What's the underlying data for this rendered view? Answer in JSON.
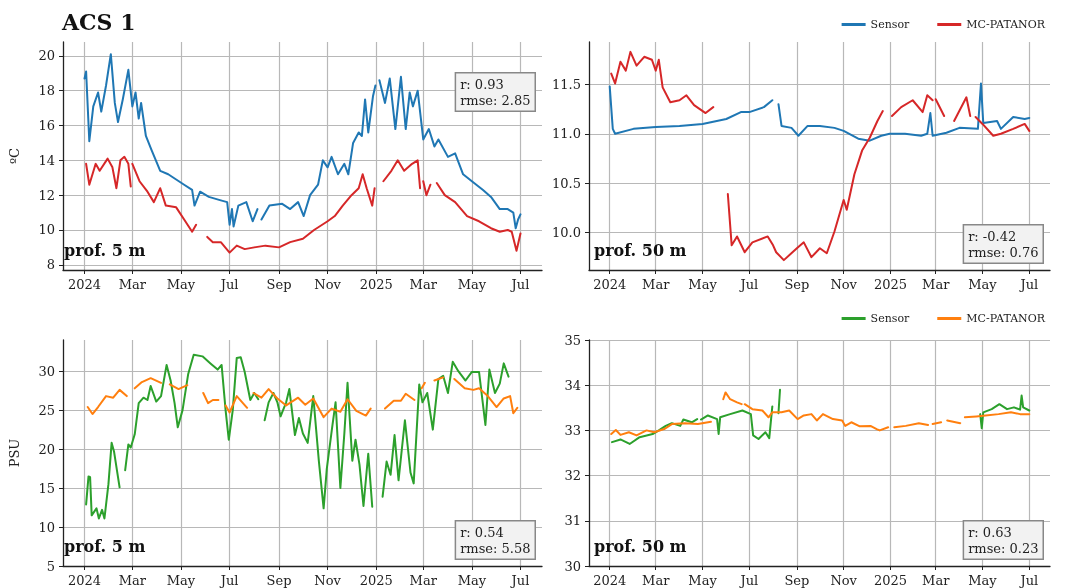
{
  "chart_data": [
    {
      "type": "line",
      "title": "ACS 1",
      "ylabel": "ºC",
      "xlim": [
        "2023-12-05",
        "2025-07-28"
      ],
      "ylim": [
        7.7,
        20.8
      ],
      "xticks": [
        {
          "value": "2024-01-01",
          "label": "2024"
        },
        {
          "value": "2024-03-01",
          "label": "Mar"
        },
        {
          "value": "2024-05-01",
          "label": "May"
        },
        {
          "value": "2024-07-01",
          "label": "Jul"
        },
        {
          "value": "2024-09-01",
          "label": "Sep"
        },
        {
          "value": "2024-11-01",
          "label": "Nov"
        },
        {
          "value": "2025-01-01",
          "label": "2025"
        },
        {
          "value": "2025-03-01",
          "label": "Mar"
        },
        {
          "value": "2025-05-01",
          "label": "May"
        },
        {
          "value": "2025-07-01",
          "label": "Jul"
        }
      ],
      "yticks": [
        8,
        10,
        12,
        14,
        16,
        18,
        20
      ],
      "grid": true,
      "marker": "none",
      "legend": false,
      "annotations": [
        "prof. 5 m",
        "r: 0.93\nrmse: 2.85"
      ],
      "series": [
        {
          "color": "#1f77b4",
          "x": [
            "2024-01-01",
            "2024-01-03",
            "2024-01-07",
            "2024-01-12",
            "2024-01-18",
            "2024-01-22",
            "2024-01-28",
            "2024-02-03",
            "2024-02-08",
            "2024-02-12",
            "2024-02-18",
            "2024-02-25",
            "2024-03-01",
            "2024-03-05",
            "2024-03-09",
            "2024-03-12",
            "2024-03-18",
            "2024-03-25",
            "2024-04-05",
            "2024-04-15",
            "2024-04-25",
            "2024-05-05",
            "2024-05-15",
            "2024-05-18",
            "2024-05-25",
            "2024-06-05",
            "2024-06-20",
            "2024-06-28",
            "2024-07-01",
            "2024-07-04",
            "2024-07-06",
            "2024-07-12",
            "2024-07-22",
            "2024-07-30",
            "2024-08-05",
            "2024-08-08",
            "2024-08-10",
            "2024-08-20",
            "2024-09-05",
            "2024-09-15",
            "2024-09-25",
            "2024-10-02",
            "2024-10-10",
            "2024-10-20",
            "2024-10-26",
            "2024-11-01",
            "2024-11-06",
            "2024-11-14",
            "2024-11-22",
            "2024-11-27",
            "2024-12-03",
            "2024-12-10",
            "2024-12-14",
            "2024-12-18",
            "2024-12-22",
            "2024-12-28",
            "2024-12-31",
            "2025-01-02",
            "2025-01-05",
            "2025-01-12",
            "2025-01-18",
            "2025-01-25",
            "2025-02-01",
            "2025-02-07",
            "2025-02-12",
            "2025-02-16",
            "2025-02-22",
            "2025-03-01",
            "2025-03-08",
            "2025-03-15",
            "2025-03-20",
            "2025-04-01",
            "2025-04-10",
            "2025-04-20",
            "2025-05-01",
            "2025-05-15",
            "2025-05-25",
            "2025-06-05",
            "2025-06-15",
            "2025-06-22",
            "2025-06-25",
            "2025-06-28",
            "2025-07-01"
          ],
          "values": [
            18.7,
            19.1,
            15.1,
            17.1,
            17.9,
            16.8,
            18.3,
            20.1,
            17.3,
            16.2,
            17.5,
            19.2,
            17.1,
            17.9,
            16.4,
            17.3,
            15.4,
            14.6,
            13.4,
            13.2,
            12.9,
            12.6,
            12.3,
            11.4,
            12.2,
            11.9,
            11.7,
            11.6,
            10.3,
            11.2,
            10.2,
            11.4,
            11.6,
            10.5,
            11.2,
            null,
            10.6,
            11.4,
            11.5,
            11.2,
            11.6,
            10.8,
            12.0,
            12.6,
            14.0,
            13.6,
            14.2,
            13.2,
            13.8,
            13.2,
            15.0,
            15.6,
            15.4,
            17.5,
            15.6,
            17.7,
            18.3,
            null,
            18.6,
            17.3,
            18.7,
            15.8,
            18.8,
            15.8,
            17.9,
            17.1,
            18.0,
            15.2,
            15.8,
            14.8,
            15.2,
            14.2,
            14.4,
            13.2,
            12.8,
            12.3,
            11.9,
            11.2,
            11.2,
            11.0,
            10.1,
            10.6,
            10.9
          ]
        },
        {
          "color": "#d62728",
          "x": [
            "2024-01-03",
            "2024-01-07",
            "2024-01-15",
            "2024-01-20",
            "2024-01-30",
            "2024-02-05",
            "2024-02-10",
            "2024-02-15",
            "2024-02-20",
            "2024-02-25",
            "2024-02-28",
            "2024-02-29",
            "2024-03-01",
            "2024-03-10",
            "2024-03-20",
            "2024-03-28",
            "2024-04-05",
            "2024-04-12",
            "2024-04-25",
            "2024-05-05",
            "2024-05-15",
            "2024-05-20",
            "2024-05-27",
            "2024-06-03",
            "2024-06-10",
            "2024-06-20",
            "2024-07-01",
            "2024-07-10",
            "2024-07-20",
            "2024-08-01",
            "2024-08-15",
            "2024-09-01",
            "2024-09-15",
            "2024-10-01",
            "2024-10-15",
            "2024-11-01",
            "2024-11-10",
            "2024-11-20",
            "2024-12-01",
            "2024-12-10",
            "2024-12-15",
            "2024-12-20",
            "2024-12-27",
            "2024-12-30",
            "2025-01-05",
            "2025-01-10",
            "2025-01-20",
            "2025-01-28",
            "2025-02-05",
            "2025-02-15",
            "2025-02-22",
            "2025-02-25",
            "2025-02-27",
            "2025-03-01",
            "2025-03-05",
            "2025-03-10",
            "2025-03-14",
            "2025-03-18",
            "2025-03-28",
            "2025-04-10",
            "2025-04-25",
            "2025-05-10",
            "2025-05-25",
            "2025-06-05",
            "2025-06-15",
            "2025-06-20",
            "2025-06-26",
            "2025-07-01"
          ],
          "values": [
            13.8,
            12.6,
            13.8,
            13.4,
            14.1,
            13.6,
            12.4,
            14.0,
            14.2,
            13.8,
            12.5,
            null,
            13.8,
            12.8,
            12.2,
            11.6,
            12.4,
            11.4,
            11.3,
            10.6,
            9.9,
            10.3,
            null,
            9.6,
            9.3,
            9.3,
            8.7,
            9.1,
            8.9,
            9.0,
            9.1,
            9.0,
            9.3,
            9.5,
            10.0,
            10.5,
            10.8,
            11.4,
            12.0,
            12.4,
            13.2,
            12.4,
            11.4,
            12.4,
            null,
            12.8,
            13.4,
            14.0,
            13.4,
            13.8,
            14.0,
            12.4,
            null,
            12.8,
            12.0,
            12.6,
            null,
            12.7,
            12.0,
            11.6,
            10.8,
            10.5,
            10.1,
            9.9,
            10.0,
            9.9,
            8.8,
            9.8
          ]
        }
      ]
    },
    {
      "type": "line",
      "xlim": [
        "2023-12-05",
        "2025-07-28"
      ],
      "ylim": [
        9.62,
        11.93
      ],
      "xticks": [
        {
          "value": "2024-01-01",
          "label": "2024"
        },
        {
          "value": "2024-03-01",
          "label": "Mar"
        },
        {
          "value": "2024-05-01",
          "label": "May"
        },
        {
          "value": "2024-07-01",
          "label": "Jul"
        },
        {
          "value": "2024-09-01",
          "label": "Sep"
        },
        {
          "value": "2024-11-01",
          "label": "Nov"
        },
        {
          "value": "2025-01-01",
          "label": "2025"
        },
        {
          "value": "2025-03-01",
          "label": "Mar"
        },
        {
          "value": "2025-05-01",
          "label": "May"
        },
        {
          "value": "2025-07-01",
          "label": "Jul"
        }
      ],
      "yticks": [
        {
          "value": 10,
          "label": "10.0"
        },
        {
          "value": 10.5,
          "label": "10.5"
        },
        {
          "value": 11,
          "label": "11.0"
        },
        {
          "value": 11.5,
          "label": "11.5"
        }
      ],
      "grid": true,
      "marker": "none",
      "legend": "top right",
      "annotations": [
        "prof. 50 m",
        "r: -0.42\nrmse: 0.76"
      ],
      "series": [
        {
          "name": "Sensor",
          "color": "#1f77b4",
          "x": [
            "2024-01-01",
            "2024-01-05",
            "2024-01-08",
            "2024-02-01",
            "2024-03-01",
            "2024-04-01",
            "2024-05-01",
            "2024-06-01",
            "2024-06-20",
            "2024-07-01",
            "2024-07-20",
            "2024-07-31",
            "2024-08-04",
            "2024-08-08",
            "2024-08-12",
            "2024-08-25",
            "2024-09-03",
            "2024-09-15",
            "2024-10-01",
            "2024-10-20",
            "2024-11-01",
            "2024-11-20",
            "2024-12-05",
            "2024-12-20",
            "2024-12-31",
            "2025-01-20",
            "2025-02-10",
            "2025-02-18",
            "2025-02-22",
            "2025-02-25",
            "2025-03-15",
            "2025-04-01",
            "2025-04-25",
            "2025-04-29",
            "2025-05-02",
            "2025-05-20",
            "2025-05-25",
            "2025-06-10",
            "2025-06-25",
            "2025-07-01"
          ],
          "values": [
            11.48,
            11.05,
            11.0,
            11.05,
            11.07,
            11.08,
            11.1,
            11.15,
            11.22,
            11.22,
            11.27,
            11.34,
            null,
            11.3,
            11.08,
            11.06,
            10.98,
            11.08,
            11.08,
            11.06,
            11.03,
            10.95,
            10.93,
            10.98,
            11.0,
            11.0,
            10.98,
            11.0,
            11.21,
            10.98,
            11.01,
            11.06,
            11.05,
            11.51,
            11.11,
            11.13,
            11.05,
            11.17,
            11.15,
            11.16
          ]
        },
        {
          "name": "MC-PATANOR",
          "color": "#d62728",
          "x": [
            "2024-01-03",
            "2024-01-08",
            "2024-01-15",
            "2024-01-22",
            "2024-01-28",
            "2024-02-05",
            "2024-02-15",
            "2024-02-25",
            "2024-03-01",
            "2024-03-05",
            "2024-03-10",
            "2024-03-20",
            "2024-04-01",
            "2024-04-10",
            "2024-04-20",
            "2024-05-05",
            "2024-05-15",
            "2024-05-25",
            "2024-06-03",
            "2024-06-08",
            "2024-06-15",
            "2024-06-25",
            "2024-07-05",
            "2024-07-25",
            "2024-08-01",
            "2024-08-05",
            "2024-08-15",
            "2024-09-01",
            "2024-09-10",
            "2024-09-20",
            "2024-10-01",
            "2024-10-10",
            "2024-10-20",
            "2024-11-01",
            "2024-11-05",
            "2024-11-15",
            "2024-11-25",
            "2024-12-05",
            "2024-12-15",
            "2024-12-22",
            "2024-12-28",
            "2025-01-03",
            "2025-01-15",
            "2025-01-30",
            "2025-02-12",
            "2025-02-18",
            "2025-02-25",
            "2025-02-27",
            "2025-03-01",
            "2025-03-12",
            "2025-03-18",
            "2025-03-25",
            "2025-04-10",
            "2025-04-15",
            "2025-04-18",
            "2025-04-22",
            "2025-05-01",
            "2025-05-15",
            "2025-05-25",
            "2025-06-10",
            "2025-06-25",
            "2025-07-01"
          ],
          "values": [
            11.61,
            11.51,
            11.73,
            11.64,
            11.83,
            11.69,
            11.78,
            11.75,
            11.64,
            11.75,
            11.47,
            11.32,
            11.34,
            11.39,
            11.29,
            11.21,
            11.27,
            null,
            10.39,
            9.87,
            9.96,
            9.8,
            9.9,
            9.96,
            9.87,
            9.8,
            9.72,
            9.84,
            9.9,
            9.75,
            9.84,
            9.79,
            10.01,
            10.33,
            10.23,
            10.59,
            10.83,
            10.96,
            11.13,
            11.23,
            null,
            11.18,
            11.27,
            11.34,
            11.22,
            11.39,
            11.34,
            null,
            11.35,
            11.18,
            null,
            11.13,
            11.37,
            11.18,
            null,
            11.17,
            11.1,
            10.98,
            11.0,
            11.05,
            11.1,
            11.03
          ]
        }
      ]
    },
    {
      "type": "line",
      "ylabel": "PSU",
      "xlim": [
        "2023-12-05",
        "2025-07-28"
      ],
      "ylim": [
        5,
        34
      ],
      "xticks": [
        {
          "value": "2024-01-01",
          "label": "2024"
        },
        {
          "value": "2024-03-01",
          "label": "Mar"
        },
        {
          "value": "2024-05-01",
          "label": "May"
        },
        {
          "value": "2024-07-01",
          "label": "Jul"
        },
        {
          "value": "2024-09-01",
          "label": "Sep"
        },
        {
          "value": "2024-11-01",
          "label": "Nov"
        },
        {
          "value": "2025-01-01",
          "label": "2025"
        },
        {
          "value": "2025-03-01",
          "label": "Mar"
        },
        {
          "value": "2025-05-01",
          "label": "May"
        },
        {
          "value": "2025-07-01",
          "label": "Jul"
        }
      ],
      "yticks": [
        5,
        10,
        15,
        20,
        25,
        30
      ],
      "grid": true,
      "marker": "none",
      "legend": false,
      "annotations": [
        "prof. 5 m",
        "r: 0.54\nrmse: 5.58"
      ],
      "series": [
        {
          "color": "#2ca02c",
          "x": [
            "2024-01-03",
            "2024-01-06",
            "2024-01-08",
            "2024-01-10",
            "2024-01-16",
            "2024-01-19",
            "2024-01-23",
            "2024-01-26",
            "2024-01-31",
            "2024-02-04",
            "2024-02-07",
            "2024-02-14",
            "2024-02-18",
            "2024-02-21",
            "2024-02-25",
            "2024-02-28",
            "2024-03-04",
            "2024-03-09",
            "2024-03-15",
            "2024-03-20",
            "2024-03-24",
            "2024-03-31",
            "2024-04-06",
            "2024-04-13",
            "2024-04-18",
            "2024-04-23",
            "2024-04-27",
            "2024-05-03",
            "2024-05-10",
            "2024-05-17",
            "2024-05-28",
            "2024-06-07",
            "2024-06-16",
            "2024-06-21",
            "2024-06-26",
            "2024-06-30",
            "2024-07-05",
            "2024-07-10",
            "2024-07-15",
            "2024-07-20",
            "2024-07-27",
            "2024-08-01",
            "2024-08-06",
            "2024-08-10",
            "2024-08-14",
            "2024-08-19",
            "2024-08-25",
            "2024-08-30",
            "2024-09-03",
            "2024-09-10",
            "2024-09-14",
            "2024-09-21",
            "2024-09-26",
            "2024-10-01",
            "2024-10-07",
            "2024-10-14",
            "2024-10-21",
            "2024-10-27",
            "2024-10-31",
            "2024-11-07",
            "2024-11-11",
            "2024-11-17",
            "2024-11-22",
            "2024-11-26",
            "2024-12-02",
            "2024-12-06",
            "2024-12-11",
            "2024-12-16",
            "2024-12-22",
            "2024-12-27",
            "2025-01-03",
            "2025-01-09",
            "2025-01-14",
            "2025-01-19",
            "2025-01-24",
            "2025-01-29",
            "2025-02-06",
            "2025-02-13",
            "2025-02-17",
            "2025-02-24",
            "2025-02-28",
            "2025-03-06",
            "2025-03-13",
            "2025-03-20",
            "2025-03-26",
            "2025-04-01",
            "2025-04-07",
            "2025-04-14",
            "2025-04-23",
            "2025-05-01",
            "2025-05-10",
            "2025-05-18",
            "2025-05-23",
            "2025-05-30",
            "2025-06-05",
            "2025-06-10",
            "2025-06-16"
          ],
          "values": [
            12.9,
            16.5,
            16.4,
            11.5,
            12.4,
            11.1,
            12.2,
            11.1,
            15.5,
            20.8,
            19.7,
            15.1,
            null,
            17.3,
            20.6,
            20.2,
            21.9,
            25.9,
            26.6,
            26.3,
            28.1,
            26.1,
            26.8,
            30.8,
            28.8,
            25.9,
            22.8,
            25.0,
            29.6,
            32.1,
            31.9,
            31.0,
            30.2,
            30.8,
            25.0,
            21.2,
            25.0,
            31.7,
            31.8,
            29.9,
            26.3,
            27.2,
            26.4,
            null,
            23.7,
            26.0,
            27.2,
            26.0,
            24.2,
            26.0,
            27.7,
            21.8,
            24.0,
            22.0,
            20.8,
            26.8,
            18.5,
            12.4,
            17.5,
            23.0,
            26.0,
            15.0,
            22.0,
            28.5,
            18.5,
            21.2,
            18.0,
            12.7,
            19.4,
            12.6,
            null,
            13.9,
            18.4,
            16.7,
            21.8,
            16.0,
            23.7,
            17.0,
            15.6,
            28.3,
            26.0,
            27.2,
            22.5,
            29.0,
            29.4,
            27.2,
            31.2,
            30.0,
            28.8,
            29.9,
            29.9,
            23.1,
            30.2,
            27.2,
            28.4,
            31.0,
            29.3
          ]
        },
        {
          "color": "#ff7f0e",
          "x": [
            "2024-01-05",
            "2024-01-11",
            "2024-01-18",
            "2024-01-28",
            "2024-02-06",
            "2024-02-14",
            "2024-02-23",
            "2024-02-28",
            "2024-03-04",
            "2024-03-13",
            "2024-03-24",
            "2024-04-06",
            "2024-04-12",
            "2024-04-17",
            "2024-04-28",
            "2024-05-09",
            "2024-05-18",
            "2024-05-29",
            "2024-06-04",
            "2024-06-10",
            "2024-06-17",
            "2024-06-22",
            "2024-06-26",
            "2024-07-01",
            "2024-07-10",
            "2024-07-23",
            "2024-07-27",
            "2024-07-31",
            "2024-08-10",
            "2024-08-19",
            "2024-08-30",
            "2024-09-10",
            "2024-09-25",
            "2024-10-04",
            "2024-10-14",
            "2024-10-27",
            "2024-11-06",
            "2024-11-17",
            "2024-11-26",
            "2024-12-07",
            "2024-12-19",
            "2024-12-25",
            "2025-01-03",
            "2025-01-12",
            "2025-01-23",
            "2025-02-01",
            "2025-02-07",
            "2025-02-18",
            "2025-02-22",
            "2025-02-27",
            "2025-03-03",
            "2025-03-09",
            "2025-03-15",
            "2025-03-26",
            "2025-04-02",
            "2025-04-09",
            "2025-04-22",
            "2025-05-03",
            "2025-05-10",
            "2025-05-21",
            "2025-06-01",
            "2025-06-10",
            "2025-06-18",
            "2025-06-22",
            "2025-06-27"
          ],
          "values": [
            25.4,
            24.5,
            25.4,
            26.8,
            26.6,
            27.6,
            26.8,
            null,
            27.8,
            28.6,
            29.1,
            28.5,
            null,
            28.3,
            27.7,
            28.2,
            null,
            27.2,
            25.9,
            26.3,
            26.3,
            null,
            25.6,
            24.7,
            26.8,
            25.3,
            null,
            27.2,
            26.6,
            27.7,
            26.5,
            25.6,
            26.6,
            25.7,
            26.5,
            24.1,
            25.2,
            24.8,
            26.4,
            24.9,
            24.3,
            25.2,
            null,
            25.2,
            26.2,
            26.2,
            27.1,
            26.3,
            null,
            27.8,
            28.5,
            null,
            28.8,
            29.2,
            null,
            29.0,
            27.8,
            27.6,
            27.8,
            26.8,
            25.4,
            26.5,
            26.8,
            24.6,
            25.3
          ]
        }
      ]
    },
    {
      "type": "line",
      "xlim": [
        "2023-12-05",
        "2025-07-28"
      ],
      "ylim": [
        30,
        35
      ],
      "xticks": [
        {
          "value": "2024-01-01",
          "label": "2024"
        },
        {
          "value": "2024-03-01",
          "label": "Mar"
        },
        {
          "value": "2024-05-01",
          "label": "May"
        },
        {
          "value": "2024-07-01",
          "label": "Jul"
        },
        {
          "value": "2024-09-01",
          "label": "Sep"
        },
        {
          "value": "2024-11-01",
          "label": "Nov"
        },
        {
          "value": "2025-01-01",
          "label": "2025"
        },
        {
          "value": "2025-03-01",
          "label": "Mar"
        },
        {
          "value": "2025-05-01",
          "label": "May"
        },
        {
          "value": "2025-07-01",
          "label": "Jul"
        }
      ],
      "yticks": [
        30,
        31,
        32,
        33,
        34,
        35
      ],
      "grid": true,
      "marker": "none",
      "legend": "top right",
      "annotations": [
        "prof. 50 m",
        "r: 0.63\nrmse: 0.23"
      ],
      "series": [
        {
          "name": "Sensor",
          "color": "#2ca02c",
          "x": [
            "2024-01-04",
            "2024-01-15",
            "2024-01-27",
            "2024-02-09",
            "2024-02-26",
            "2024-03-05",
            "2024-03-14",
            "2024-03-22",
            "2024-04-02",
            "2024-04-06",
            "2024-04-17",
            "2024-04-24",
            "2024-04-26",
            "2024-04-29",
            "2024-05-08",
            "2024-05-20",
            "2024-05-22",
            "2024-05-24",
            "2024-06-06",
            "2024-06-22",
            "2024-07-03",
            "2024-07-06",
            "2024-07-13",
            "2024-07-22",
            "2024-07-27",
            "2024-07-31",
            "2024-08-04",
            "2024-08-08",
            "2024-08-10",
            "2024-09-01",
            "2025-04-28",
            "2025-04-30",
            "2025-05-02",
            "2025-05-13",
            "2025-05-23",
            "2025-06-02",
            "2025-06-11",
            "2025-06-19",
            "2025-06-21",
            "2025-06-23",
            "2025-07-01"
          ],
          "values": [
            32.74,
            32.8,
            32.7,
            32.85,
            32.92,
            33.0,
            33.1,
            33.16,
            33.1,
            33.24,
            33.18,
            33.25,
            null,
            33.24,
            33.33,
            33.25,
            32.92,
            33.29,
            33.36,
            33.44,
            33.36,
            32.89,
            32.81,
            32.96,
            32.83,
            33.53,
            null,
            33.38,
            33.9,
            null,
            33.36,
            33.05,
            33.4,
            33.47,
            33.58,
            33.47,
            33.51,
            33.46,
            33.77,
            33.51,
            33.44
          ]
        },
        {
          "name": "MC-PATANOR",
          "color": "#ff7f0e",
          "x": [
            "2024-01-03",
            "2024-01-09",
            "2024-01-15",
            "2024-01-26",
            "2024-02-05",
            "2024-02-18",
            "2024-02-28",
            "2024-03-12",
            "2024-03-22",
            "2024-04-08",
            "2024-04-25",
            "2024-05-12",
            "2024-05-20",
            "2024-05-28",
            "2024-05-31",
            "2024-06-06",
            "2024-06-15",
            "2024-06-21",
            "2024-06-23",
            "2024-06-25",
            "2024-07-05",
            "2024-07-18",
            "2024-07-26",
            "2024-07-31",
            "2024-08-12",
            "2024-08-22",
            "2024-09-02",
            "2024-09-10",
            "2024-09-20",
            "2024-09-27",
            "2024-10-05",
            "2024-10-18",
            "2024-10-30",
            "2024-11-03",
            "2024-11-11",
            "2024-11-22",
            "2024-12-06",
            "2024-12-14",
            "2024-12-18",
            "2024-12-29",
            "2025-01-02",
            "2025-01-06",
            "2025-01-21",
            "2025-02-07",
            "2025-02-19",
            "2025-02-22",
            "2025-02-25",
            "2025-03-08",
            "2025-03-12",
            "2025-03-16",
            "2025-04-02",
            "2025-04-05",
            "2025-04-08",
            "2025-04-23",
            "2025-05-05",
            "2025-05-22",
            "2025-06-07",
            "2025-06-19",
            "2025-07-01"
          ],
          "values": [
            32.92,
            33.01,
            32.9,
            32.96,
            32.89,
            33.0,
            32.96,
            33.03,
            33.14,
            33.16,
            33.14,
            33.19,
            null,
            33.69,
            33.84,
            33.69,
            33.62,
            33.58,
            null,
            33.58,
            33.47,
            33.44,
            33.29,
            33.4,
            33.4,
            33.44,
            33.25,
            33.33,
            33.36,
            33.22,
            33.36,
            33.25,
            33.22,
            33.1,
            33.18,
            33.09,
            33.1,
            33.03,
            33.0,
            33.07,
            null,
            33.07,
            33.1,
            33.16,
            33.12,
            null,
            33.14,
            33.18,
            null,
            33.22,
            33.16,
            null,
            33.29,
            33.31,
            33.33,
            33.36,
            33.4,
            33.36,
            33.36
          ]
        }
      ]
    }
  ]
}
